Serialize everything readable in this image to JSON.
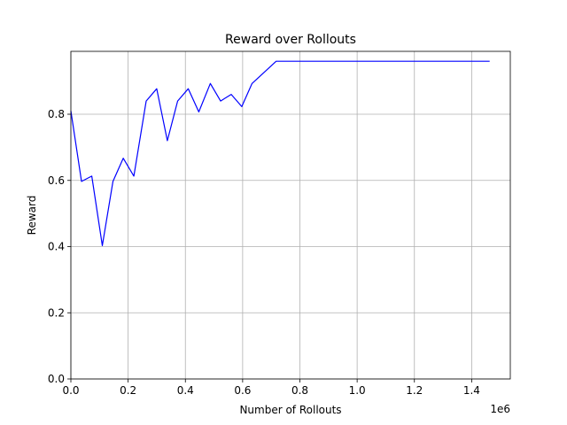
{
  "chart_data": {
    "type": "line",
    "title": "Reward over Rollouts",
    "xlabel": "Number of Rollouts",
    "ylabel": "Reward",
    "x_offset_text": "1e6",
    "xlim": [
      0,
      1.535
    ],
    "ylim": [
      0,
      0.99
    ],
    "x_ticks": [
      0.0,
      0.2,
      0.4,
      0.6,
      0.8,
      1.0,
      1.2,
      1.4
    ],
    "x_tick_labels": [
      "0.0",
      "0.2",
      "0.4",
      "0.6",
      "0.8",
      "1.0",
      "1.2",
      "1.4"
    ],
    "y_ticks": [
      0.0,
      0.2,
      0.4,
      0.6,
      0.8
    ],
    "y_tick_labels": [
      "0.0",
      "0.2",
      "0.4",
      "0.6",
      "0.8"
    ],
    "grid": true,
    "series": [
      {
        "color": "#0000ff",
        "x": [
          0.0,
          0.037,
          0.073,
          0.11,
          0.147,
          0.183,
          0.22,
          0.263,
          0.3,
          0.337,
          0.373,
          0.41,
          0.447,
          0.487,
          0.523,
          0.56,
          0.597,
          0.633,
          0.717,
          1.463
        ],
        "y": [
          0.81,
          0.597,
          0.613,
          0.403,
          0.597,
          0.667,
          0.613,
          0.84,
          0.877,
          0.72,
          0.84,
          0.877,
          0.807,
          0.893,
          0.84,
          0.86,
          0.823,
          0.893,
          0.96,
          0.96
        ]
      }
    ]
  }
}
